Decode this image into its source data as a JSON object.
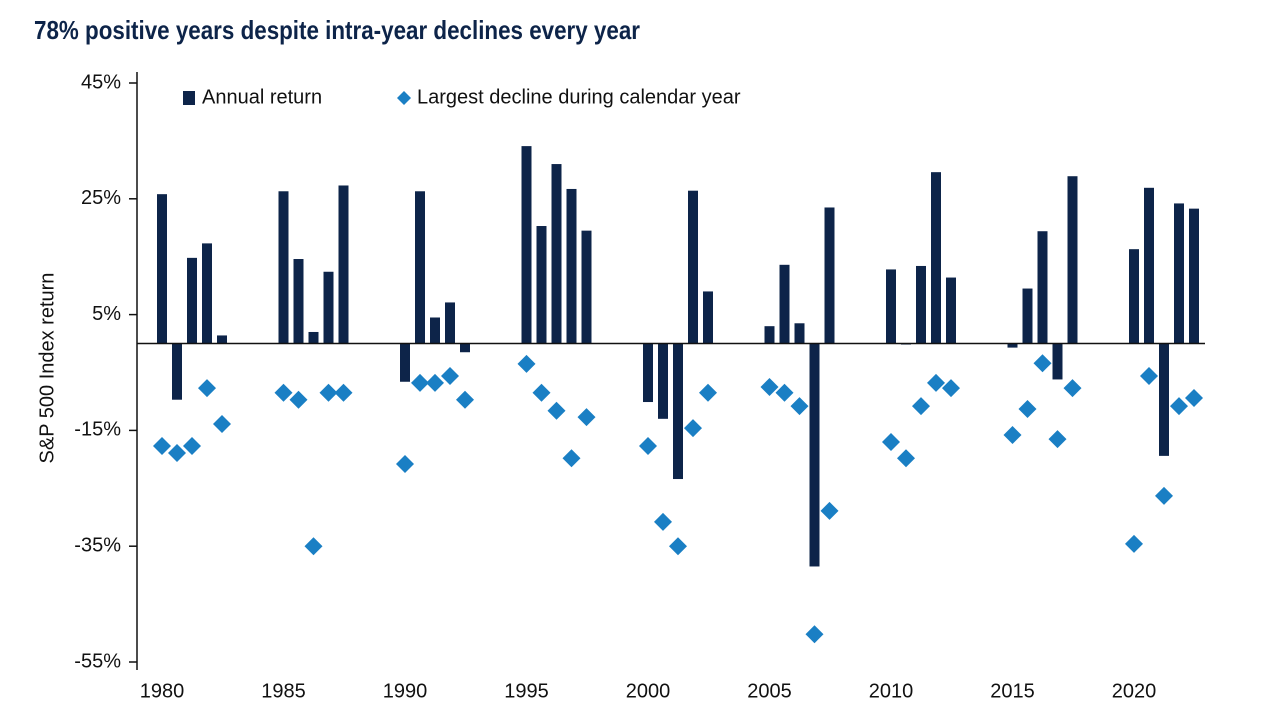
{
  "chart_data": {
    "type": "bar",
    "title": "78% positive years despite intra-year declines every year",
    "y_label": "S&P 500 Index return",
    "categories": [
      "1980",
      null,
      null,
      null,
      null,
      "1985",
      null,
      null,
      null,
      null,
      "1990",
      null,
      null,
      null,
      null,
      "1995",
      null,
      null,
      null,
      null,
      "2000",
      null,
      null,
      null,
      null,
      "2005",
      null,
      null,
      null,
      null,
      "2010",
      null,
      null,
      null,
      null,
      "2015",
      null,
      null,
      null,
      null,
      "2020",
      null,
      null,
      null,
      null
    ],
    "series": [
      {
        "name": "Annual return",
        "color": "#0d2449",
        "marker": "bar",
        "values": [
          25.8,
          -9.7,
          14.8,
          17.3,
          1.4,
          26.3,
          14.6,
          2.0,
          12.4,
          27.3,
          -6.6,
          26.3,
          4.5,
          7.1,
          -1.5,
          34.1,
          20.3,
          31.0,
          26.7,
          19.5,
          -10.1,
          -13.0,
          -23.4,
          26.4,
          9.0,
          3.0,
          13.6,
          3.5,
          -38.5,
          23.5,
          12.8,
          0.0,
          13.4,
          29.6,
          11.4,
          -0.7,
          9.5,
          19.4,
          -6.2,
          28.9,
          16.3,
          26.9,
          -19.4,
          24.2,
          23.3
        ]
      },
      {
        "name": "Largest decline during calendar year",
        "color": "#1a7fc4",
        "marker": "diamond",
        "values": [
          -17.7,
          -18.9,
          -17.7,
          -7.7,
          -13.9,
          -8.5,
          -9.7,
          -35,
          -8.5,
          -8.5,
          -20.8,
          -6.8,
          -6.8,
          -5.6,
          -9.7,
          -3.5,
          -8.5,
          -11.6,
          -19.8,
          -12.7,
          -17.7,
          -30.8,
          -35,
          -14.6,
          -8.5,
          -7.5,
          -8.5,
          -10.8,
          -50.2,
          -28.9,
          -17,
          -19.8,
          -10.8,
          -6.8,
          -7.7,
          -15.8,
          -11.3,
          -3.4,
          -16.5,
          -7.7,
          -34.6,
          -5.6,
          -26.3,
          -10.8,
          -9.4
        ]
      }
    ],
    "ylim": [
      -55,
      45
    ],
    "yticks": [
      {
        "value": 45,
        "label": "45%"
      },
      {
        "value": 25,
        "label": "25%"
      },
      {
        "value": 5,
        "label": "5%"
      },
      {
        "value": -15,
        "label": "-15%"
      },
      {
        "value": -35,
        "label": "-35%"
      },
      {
        "value": -55,
        "label": "-55%"
      }
    ]
  }
}
